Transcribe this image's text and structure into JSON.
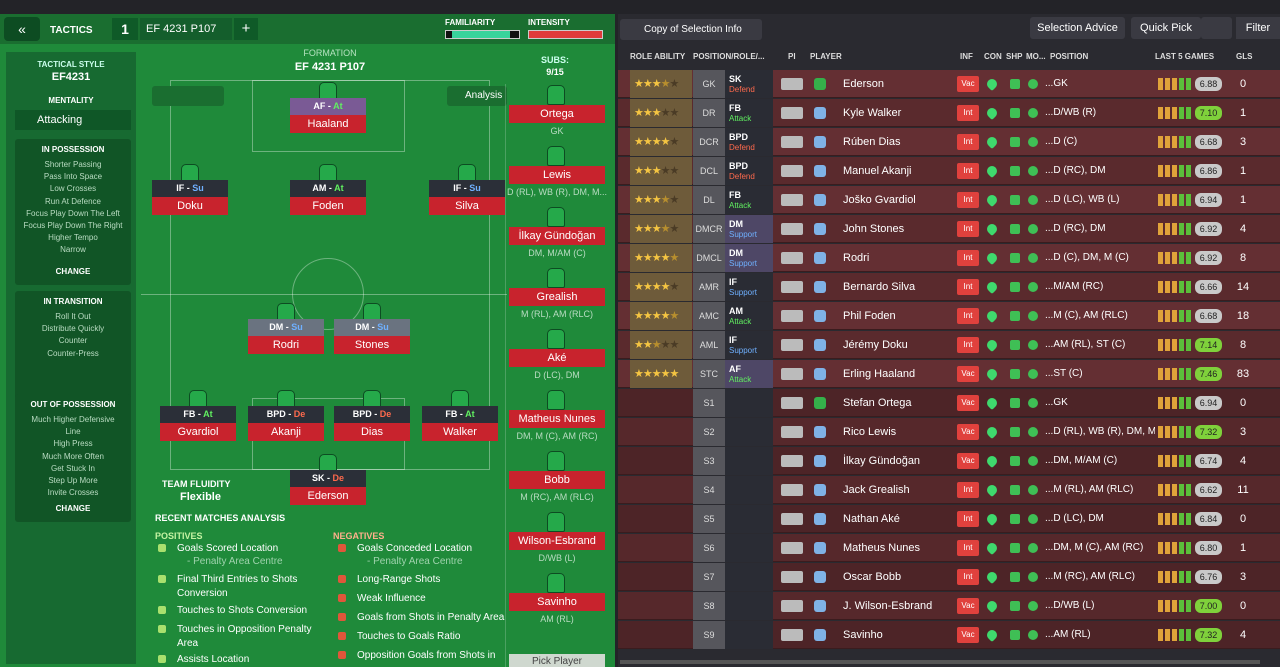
{
  "header": {
    "tactics": "TACTICS",
    "slot": "1",
    "tactic_name": "EF 4231 P107",
    "add": "+",
    "familiarity": "FAMILIARITY",
    "intensity": "INTENSITY"
  },
  "style_panel": {
    "tactical_style_label": "TACTICAL STYLE",
    "tactical_style": "EF4231",
    "mentality_label": "MENTALITY",
    "mentality": "Attacking",
    "change": "CHANGE",
    "sections": [
      {
        "title": "IN POSSESSION",
        "items": [
          "Shorter Passing",
          "Pass Into Space",
          "Low Crosses",
          "Run At Defence",
          "Focus Play Down The Left",
          "Focus Play Down The Right",
          "Higher Tempo",
          "Narrow"
        ]
      },
      {
        "title": "IN TRANSITION",
        "items": [
          "Roll It Out",
          "Distribute Quickly",
          "Counter",
          "Counter-Press"
        ]
      },
      {
        "title": "OUT OF POSSESSION",
        "items": [
          "Much Higher Defensive",
          "Line",
          "High Press",
          "Much More Often",
          "Get Stuck In",
          "Step Up More",
          "Invite Crosses"
        ]
      }
    ]
  },
  "pitch": {
    "formation_label": "FORMATION",
    "formation": "EF 4231 P107",
    "analysis": "Analysis",
    "team_fluidity_label": "TEAM FLUIDITY",
    "team_fluidity": "Flexible",
    "players": [
      {
        "role": "AF",
        "duty": "At",
        "name": "Haaland"
      },
      {
        "role": "IF",
        "duty": "Su",
        "name": "Doku"
      },
      {
        "role": "AM",
        "duty": "At",
        "name": "Foden"
      },
      {
        "role": "IF",
        "duty": "Su",
        "name": "Silva"
      },
      {
        "role": "DM",
        "duty": "Su",
        "name": "Rodri"
      },
      {
        "role": "DM",
        "duty": "Su",
        "name": "Stones"
      },
      {
        "role": "FB",
        "duty": "At",
        "name": "Gvardiol"
      },
      {
        "role": "BPD",
        "duty": "De",
        "name": "Akanji"
      },
      {
        "role": "BPD",
        "duty": "De",
        "name": "Dias"
      },
      {
        "role": "FB",
        "duty": "At",
        "name": "Walker"
      },
      {
        "role": "SK",
        "duty": "De",
        "name": "Ederson"
      }
    ]
  },
  "subs": {
    "label": "SUBS:",
    "count": "9/15",
    "pick": "Pick Player",
    "players": [
      {
        "name": "Ortega",
        "positions": "GK"
      },
      {
        "name": "Lewis",
        "positions": "D (RL), WB (R), DM, M..."
      },
      {
        "name": "İlkay Gündoğan",
        "positions": "DM, M/AM (C)"
      },
      {
        "name": "Grealish",
        "positions": "M (RL), AM (RLC)"
      },
      {
        "name": "Aké",
        "positions": "D (LC), DM"
      },
      {
        "name": "Matheus Nunes",
        "positions": "DM, M (C), AM (RC)"
      },
      {
        "name": "Bobb",
        "positions": "M (RC), AM (RLC)"
      },
      {
        "name": "Wilson-Esbrand",
        "positions": "D/WB (L)"
      },
      {
        "name": "Savinho",
        "positions": "AM (RL)"
      }
    ]
  },
  "analysis": {
    "title": "RECENT MATCHES ANALYSIS",
    "positives_label": "POSITIVES",
    "negatives_label": "NEGATIVES",
    "positives": [
      {
        "text": "Goals Scored Location",
        "detail": "- Penalty Area Centre"
      },
      {
        "text": "Final Third Entries to Shots Conversion"
      },
      {
        "text": "Touches to Shots Conversion"
      },
      {
        "text": "Touches in Opposition Penalty Area"
      },
      {
        "text": "Assists Location"
      }
    ],
    "negatives": [
      {
        "text": "Goals Conceded Location",
        "detail": "- Penalty Area Centre"
      },
      {
        "text": "Long-Range Shots"
      },
      {
        "text": "Weak Influence"
      },
      {
        "text": "Goals from Shots in Penalty Area"
      },
      {
        "text": "Touches to Goals Ratio"
      },
      {
        "text": "Opposition Goals from Shots in"
      }
    ]
  },
  "toolbar": {
    "copy": "Copy of Selection Info",
    "advice": "Selection Advice",
    "quick_pick": "Quick Pick",
    "filter": "Filter"
  },
  "table": {
    "columns": [
      "ROLE ABILITY",
      "POSITION/ROLE/...",
      "PI",
      "PLAYER",
      "INF",
      "CON",
      "SHP",
      "MO...",
      "POSITION",
      "LAST 5 GAMES",
      "GLS"
    ],
    "rows": [
      {
        "stars": 3.5,
        "pos": "GK",
        "role": "SK",
        "duty": "Defend",
        "name": "Ederson",
        "inf": "Vac",
        "position": "...GK",
        "rating": "6.88",
        "gls": 0
      },
      {
        "stars": 3,
        "pos": "DR",
        "role": "FB",
        "duty": "Attack",
        "name": "Kyle Walker",
        "inf": "Int",
        "position": "...D/WB (R)",
        "rating": "7.10",
        "gls": 1
      },
      {
        "stars": 4,
        "pos": "DCR",
        "role": "BPD",
        "duty": "Defend",
        "name": "Rúben Dias",
        "inf": "Int",
        "position": "...D (C)",
        "rating": "6.68",
        "gls": 3
      },
      {
        "stars": 3,
        "pos": "DCL",
        "role": "BPD",
        "duty": "Defend",
        "name": "Manuel Akanji",
        "inf": "Int",
        "position": "...D (RC), DM",
        "rating": "6.86",
        "gls": 1
      },
      {
        "stars": 3.5,
        "pos": "DL",
        "role": "FB",
        "duty": "Attack",
        "name": "Joško Gvardiol",
        "inf": "Int",
        "position": "...D (LC), WB (L)",
        "rating": "6.94",
        "gls": 1
      },
      {
        "stars": 3.5,
        "pos": "DMCR",
        "role": "DM",
        "duty": "Support",
        "name": "John Stones",
        "inf": "Int",
        "position": "...D (RC), DM",
        "rating": "6.92",
        "gls": 4
      },
      {
        "stars": 4.5,
        "pos": "DMCL",
        "role": "DM",
        "duty": "Support",
        "name": "Rodri",
        "inf": "Int",
        "position": "...D (C), DM, M (C)",
        "rating": "6.92",
        "gls": 8
      },
      {
        "stars": 4,
        "pos": "AMR",
        "role": "IF",
        "duty": "Support",
        "name": "Bernardo Silva",
        "inf": "Int",
        "position": "...M/AM (RC)",
        "rating": "6.66",
        "gls": 14
      },
      {
        "stars": 4.5,
        "pos": "AMC",
        "role": "AM",
        "duty": "Attack",
        "name": "Phil Foden",
        "inf": "Int",
        "position": "...M (C), AM (RLC)",
        "rating": "6.68",
        "gls": 18
      },
      {
        "stars": 2.5,
        "pos": "AML",
        "role": "IF",
        "duty": "Support",
        "name": "Jérémy Doku",
        "inf": "Int",
        "position": "...AM (RL), ST (C)",
        "rating": "7.14",
        "gls": 8
      },
      {
        "stars": 5,
        "pos": "STC",
        "role": "AF",
        "duty": "Attack",
        "name": "Erling Haaland",
        "inf": "Vac",
        "position": "...ST (C)",
        "rating": "7.46",
        "gls": 83
      },
      {
        "pos": "S1",
        "name": "Stefan Ortega",
        "inf": "Vac",
        "position": "...GK",
        "rating": "6.94",
        "gls": 0
      },
      {
        "pos": "S2",
        "name": "Rico Lewis",
        "inf": "Vac",
        "position": "...D (RL), WB (R), DM, M...",
        "rating": "7.32",
        "gls": 3
      },
      {
        "pos": "S3",
        "name": "İlkay Gündoğan",
        "inf": "Vac",
        "position": "...DM, M/AM (C)",
        "rating": "6.74",
        "gls": 4
      },
      {
        "pos": "S4",
        "name": "Jack Grealish",
        "inf": "Int",
        "position": "...M (RL), AM (RLC)",
        "rating": "6.62",
        "gls": 11
      },
      {
        "pos": "S5",
        "name": "Nathan Aké",
        "inf": "Int",
        "position": "...D (LC), DM",
        "rating": "6.84",
        "gls": 0
      },
      {
        "pos": "S6",
        "name": "Matheus Nunes",
        "inf": "Int",
        "position": "...DM, M (C), AM (RC)",
        "rating": "6.80",
        "gls": 1
      },
      {
        "pos": "S7",
        "name": "Oscar Bobb",
        "inf": "Int",
        "position": "...M (RC), AM (RLC)",
        "rating": "6.76",
        "gls": 3
      },
      {
        "pos": "S8",
        "name": "J. Wilson-Esbrand",
        "inf": "Vac",
        "position": "...D/WB (L)",
        "rating": "7.00",
        "gls": 0
      },
      {
        "pos": "S9",
        "name": "Savinho",
        "inf": "Vac",
        "position": "...AM (RL)",
        "rating": "7.32",
        "gls": 4
      }
    ]
  }
}
